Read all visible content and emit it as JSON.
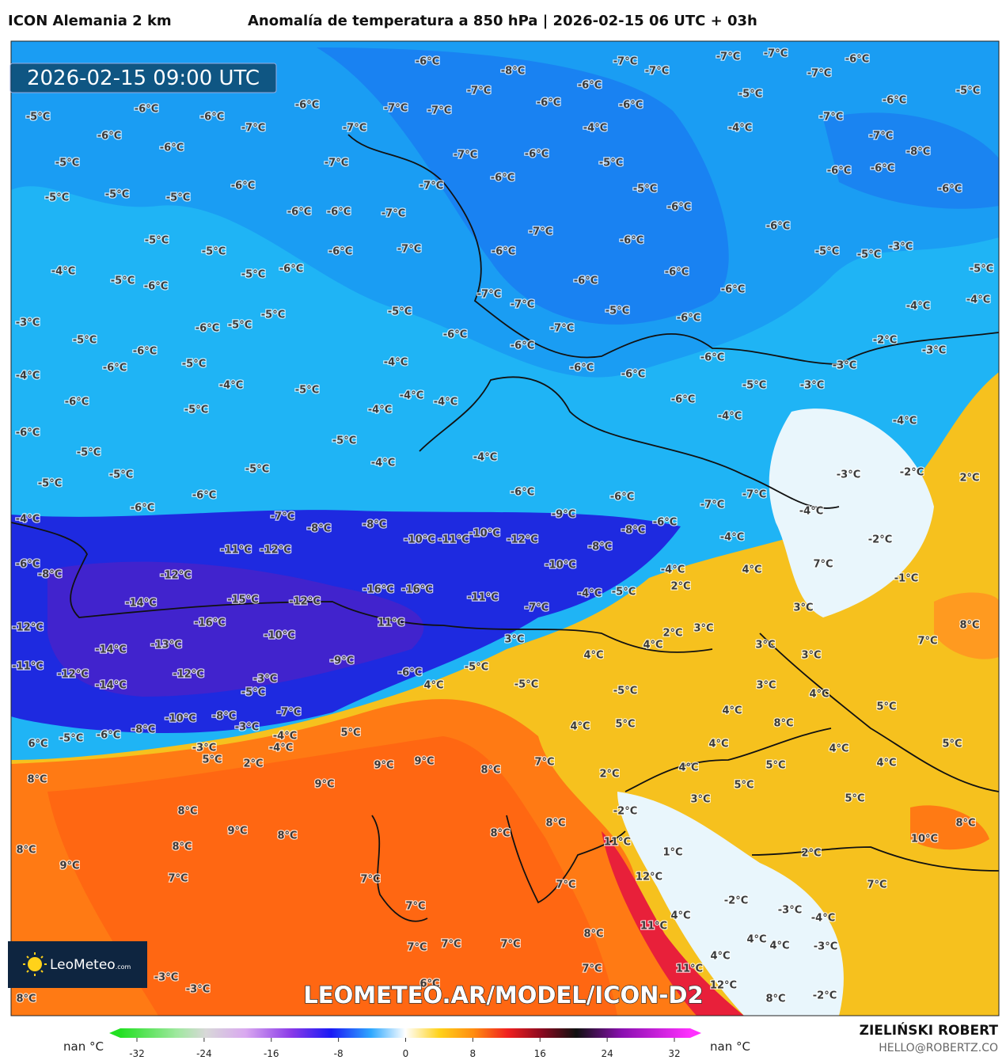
{
  "header": {
    "model": "ICON Alemania 2 km",
    "title": "Anomalía de temperatura a 850 hPa | 2026-02-15 06 UTC + 03h"
  },
  "map": {
    "valid_time": "2026-02-15 09:00 UTC",
    "watermark": "LEOMETEO.AR/MODEL/ICON-D2",
    "logo": "LeoMeteo",
    "logo_suffix": ".com",
    "labels": [
      "-6°C",
      "-8°C",
      "-7°C",
      "-7°C",
      "-7°C",
      "-7°C",
      "-6°C",
      "-7°C",
      "-5°C",
      "-5°C",
      "-6°C",
      "-6°C",
      "-6°C",
      "-7°C",
      "-7°C",
      "-6°C",
      "-6°C",
      "-6°C",
      "-7°C",
      "-5°C",
      "-6°C",
      "-7°C",
      "-7°C",
      "-4°C",
      "-4°C",
      "-7°C",
      "-7°C",
      "-8°C",
      "-6°C",
      "-6°C",
      "-5°C",
      "-7°C",
      "-7°C",
      "-6°C",
      "-5°C",
      "-6°C",
      "-6°C",
      "-6°C",
      "-7°C",
      "-6°C",
      "-5°C",
      "-6°C",
      "-5°C",
      "-5°C",
      "-5°C",
      "-6°C",
      "-6°C",
      "-7°C",
      "-6°C",
      "-6°C",
      "-7°C",
      "-6°C",
      "-5°C",
      "-5°C",
      "-6°C",
      "-7°C",
      "-6°C",
      "-5°C",
      "-5°C",
      "-3°C",
      "-5°C",
      "-4°C",
      "-5°C",
      "-6°C",
      "-5°C",
      "-6°C",
      "-6°C",
      "-6°C",
      "-6°C",
      "-7°C",
      "-7°C",
      "-5°C",
      "-4°C",
      "-4°C",
      "-3°C",
      "-6°C",
      "-5°C",
      "-5°C",
      "-5°C",
      "-7°C",
      "-6°C",
      "-5°C",
      "-6°C",
      "-6°C",
      "-6°C",
      "-2°C",
      "-3°C",
      "-6°C",
      "-6°C",
      "-5°C",
      "-4°C",
      "-4°C",
      "-5°C",
      "-4°C",
      "-4°C",
      "-6°C",
      "-6°C",
      "-3°C",
      "-5°C",
      "-3°C",
      "-4°C",
      "-6°C",
      "-5°C",
      "-4°C",
      "-6°C",
      "-4°C",
      "-4°C",
      "-6°C",
      "-5°C",
      "-5°C",
      "-4°C",
      "-4°C",
      "-5°C",
      "-5°C",
      "-3°C",
      "-2°C",
      "2°C",
      "-5°C",
      "-6°C",
      "-6°C",
      "-6°C",
      "-7°C",
      "-7°C",
      "-4°C",
      "-6°C",
      "-4°C",
      "-7°C",
      "-8°C",
      "-8°C",
      "-9°C",
      "-8°C",
      "-6°C",
      "-4°C",
      "-2°C",
      "-10°C",
      "-11°C",
      "-10°C",
      "-12°C",
      "-8°C",
      "-11°C",
      "-12°C",
      "-6°C",
      "-8°C",
      "-12°C",
      "-10°C",
      "-4°C",
      "4°C",
      "7°C",
      "-1°C",
      "-16°C",
      "-16°C",
      "-15°C",
      "-12°C",
      "-11°C",
      "-4°C",
      "-5°C",
      "2°C",
      "3°C",
      "-14°C",
      "-7°C",
      "-16°C",
      "11°C",
      "3°C",
      "-12°C",
      "8°C",
      "7°C",
      "-10°C",
      "2°C",
      "3°C",
      "3°C",
      "4°C",
      "-14°C",
      "-13°C",
      "4°C",
      "3°C",
      "-9°C",
      "-11°C",
      "-5°C",
      "-6°C",
      "-12°C",
      "-12°C",
      "3°C",
      "-3°C",
      "-14°C",
      "4°C",
      "-5°C",
      "-5°C",
      "-5°C",
      "4°C",
      "5°C",
      "-7°C",
      "-8°C",
      "-10°C",
      "-8°C",
      "-3°C",
      "4°C",
      "5°C",
      "4°C",
      "8°C",
      "-5°C",
      "-6°C",
      "5°C",
      "-4°C",
      "-4°C",
      "6°C",
      "-3°C",
      "4°C",
      "5°C",
      "4°C",
      "5°C",
      "2°C",
      "9°C",
      "9°C",
      "7°C",
      "8°C",
      "4°C",
      "5°C",
      "4°C",
      "2°C",
      "8°C",
      "9°C",
      "5°C",
      "5°C",
      "8°C",
      "-2°C",
      "3°C",
      "9°C",
      "8°C",
      "8°C",
      "8°C",
      "8°C",
      "10°C",
      "8°C",
      "8°C",
      "11°C",
      "1°C",
      "2°C",
      "9°C",
      "7°C",
      "7°C",
      "7°C",
      "12°C",
      "7°C",
      "-2°C",
      "7°C",
      "-3°C",
      "-4°C",
      "4°C",
      "11°C",
      "8°C",
      "4°C",
      "4°C",
      "-3°C",
      "7°C",
      "7°C",
      "7°C",
      "4°C",
      "7°C",
      "11°C",
      "12°C",
      "6°C",
      "-3°C",
      "-3°C",
      "-2°C",
      "8°C",
      "8°C"
    ]
  },
  "colorbar": {
    "ticks": [
      -32,
      -24,
      -16,
      -8,
      0,
      8,
      16,
      24,
      32
    ],
    "nan_left": "nan °C",
    "nan_right": "nan °C"
  },
  "footer": {
    "author": "ZIELIŃSKI ROBERT",
    "contact": "HELLO@ROBERTZ.CO"
  }
}
